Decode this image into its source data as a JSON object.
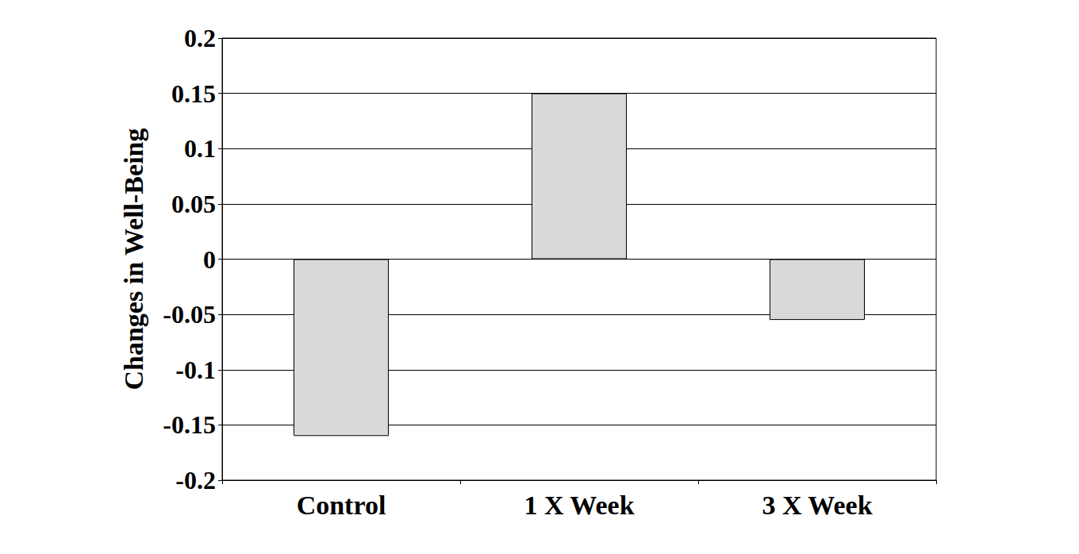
{
  "chart_data": {
    "type": "bar",
    "y_label": "Changes in Well-Being",
    "categories": [
      "Control",
      "1 X Week",
      "3 X Week"
    ],
    "values": [
      -0.16,
      0.15,
      -0.055
    ],
    "color": "#d9d9d9",
    "ylim": [
      -0.2,
      0.2
    ],
    "yticks": [
      -0.2,
      -0.15,
      -0.1,
      -0.05,
      0,
      0.05,
      0.1,
      0.15,
      0.2
    ],
    "grid": true
  }
}
